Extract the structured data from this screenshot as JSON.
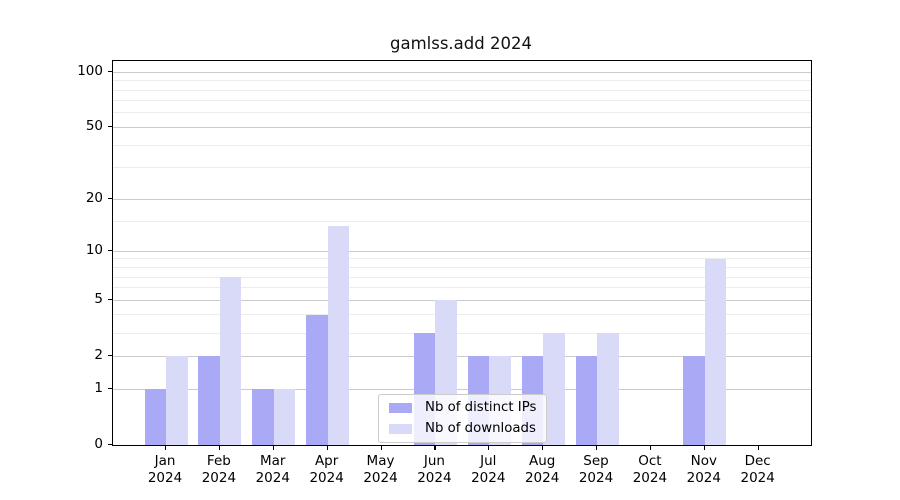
{
  "chart_data": {
    "type": "bar",
    "title": "gamlss.add 2024",
    "categories": [
      "Jan",
      "Feb",
      "Mar",
      "Apr",
      "May",
      "Jun",
      "Jul",
      "Aug",
      "Sep",
      "Oct",
      "Nov",
      "Dec"
    ],
    "category_sublabel": "2024",
    "series": [
      {
        "name": "Nb of distinct IPs",
        "color": "#a9a9f6",
        "values": [
          1,
          2,
          1,
          4,
          0,
          3,
          2,
          2,
          2,
          0,
          2,
          0
        ]
      },
      {
        "name": "Nb of downloads",
        "color": "#d9d9f8",
        "values": [
          2,
          7,
          1,
          14,
          0,
          5,
          2,
          3,
          3,
          0,
          9,
          0
        ]
      }
    ],
    "yscale": "log1p",
    "ylim": [
      0,
      115
    ],
    "y_major_ticks": [
      0,
      1,
      2,
      5,
      10,
      20,
      50,
      100
    ],
    "y_minor_gridlines": [
      3,
      4,
      6,
      7,
      8,
      9,
      15,
      30,
      40,
      60,
      70,
      80,
      90
    ],
    "grid": {
      "major_color": "#cbcbcb",
      "minor_color": "#ececec"
    },
    "axis_color": "#000000",
    "legend": {
      "position": "lower center-left inside plot"
    }
  }
}
